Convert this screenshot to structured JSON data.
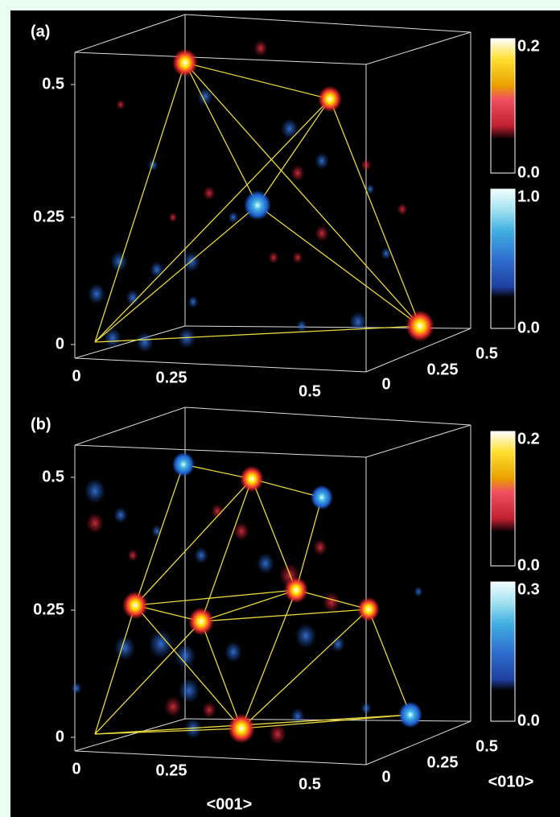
{
  "panels": [
    {
      "label": "(a)",
      "y_ticks": [
        "0.5",
        "0.25",
        "0"
      ],
      "x_ticks": [
        "0",
        "0.25",
        "0.5"
      ],
      "z_ticks": [
        "0",
        "0.25",
        "0.5"
      ],
      "colorbars": [
        {
          "max": "0.2",
          "min": "0.0"
        },
        {
          "max": "1.0",
          "min": "0.0"
        }
      ]
    },
    {
      "label": "(b)",
      "y_ticks": [
        "0.5",
        "0.25",
        "0"
      ],
      "x_ticks": [
        "0",
        "0.25",
        "0.5"
      ],
      "z_ticks": [
        "0",
        "0.25",
        "0.5"
      ],
      "colorbars": [
        {
          "max": "0.2",
          "min": "0.0"
        },
        {
          "max": "0.3",
          "min": "0.0"
        }
      ],
      "x_axis_label": "<001>",
      "z_axis_label": "<010>"
    }
  ]
}
